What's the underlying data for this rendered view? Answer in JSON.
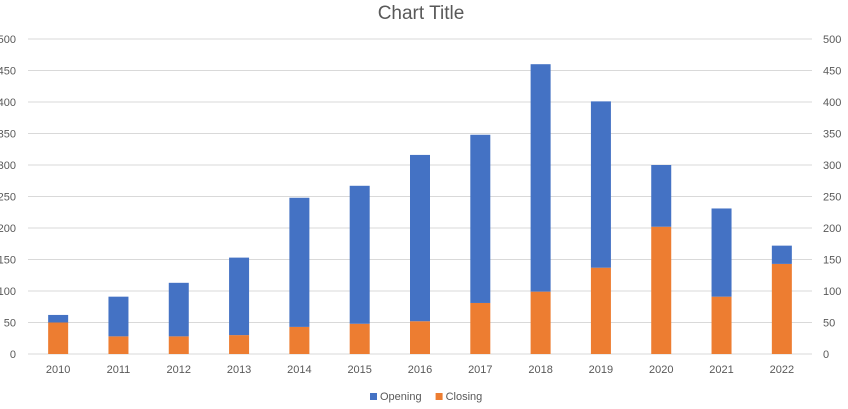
{
  "chart_data": {
    "type": "bar",
    "stacked": true,
    "title": "Chart Title",
    "categories": [
      "2010",
      "2011",
      "2012",
      "2013",
      "2014",
      "2015",
      "2016",
      "2017",
      "2018",
      "2019",
      "2020",
      "2021",
      "2022"
    ],
    "series": [
      {
        "name": "Closing",
        "color": "#ED7D31",
        "values": [
          50,
          28,
          28,
          30,
          43,
          48,
          52,
          81,
          99,
          137,
          202,
          91,
          143
        ]
      },
      {
        "name": "Opening",
        "color": "#4472C4",
        "values": [
          12,
          63,
          85,
          123,
          205,
          219,
          264,
          267,
          361,
          264,
          98,
          140,
          29
        ]
      }
    ],
    "ylim": [
      0,
      500
    ],
    "yticks": [
      "0",
      "50",
      "100",
      "150",
      "200",
      "250",
      "300",
      "350",
      "400",
      "450",
      "500"
    ],
    "secondary_axis": true,
    "grid": true,
    "legend_position": "bottom",
    "legend": [
      "Opening",
      "Closing"
    ]
  }
}
